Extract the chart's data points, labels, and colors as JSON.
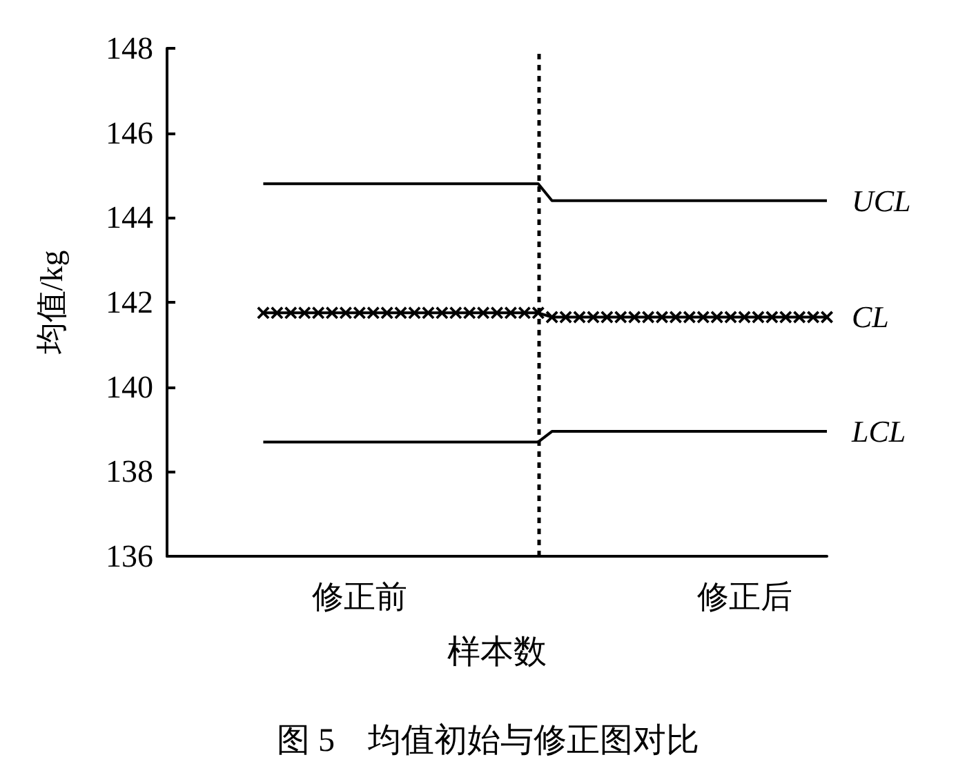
{
  "chart_data": {
    "type": "line",
    "title": "图 5　均值初始与修正图对比",
    "xlabel": "样本数",
    "ylabel": "均值/kg",
    "categories": [
      null,
      null,
      null,
      null,
      null,
      null,
      null,
      null,
      null,
      null,
      null,
      null,
      null,
      null,
      "修正前",
      null,
      null,
      null,
      null,
      null,
      null,
      null,
      null,
      null,
      null,
      null,
      null,
      null,
      null,
      null,
      null,
      null,
      null,
      null,
      null,
      null,
      null,
      null,
      null,
      null,
      null,
      null,
      "修正后",
      null,
      null,
      null,
      null,
      null,
      null
    ],
    "ylim": [
      136,
      148
    ],
    "yticks": [
      136,
      138,
      140,
      142,
      144,
      146,
      148
    ],
    "series": [
      {
        "name": "UCL",
        "color": "#000000",
        "marker": "none",
        "values": [
          null,
          null,
          null,
          null,
          null,
          null,
          null,
          144.8,
          null,
          null,
          null,
          null,
          null,
          null,
          null,
          null,
          null,
          null,
          null,
          null,
          null,
          null,
          null,
          null,
          null,
          null,
          null,
          144.8,
          144.4,
          null,
          null,
          null,
          null,
          null,
          null,
          null,
          null,
          null,
          null,
          null,
          null,
          null,
          null,
          null,
          null,
          null,
          null,
          null,
          144.4
        ]
      },
      {
        "name": "CL",
        "color": "#000000",
        "marker": "cross",
        "values": [
          null,
          null,
          null,
          null,
          null,
          null,
          null,
          141.75,
          141.75,
          141.75,
          141.75,
          141.75,
          141.75,
          141.75,
          141.75,
          141.75,
          141.75,
          141.75,
          141.75,
          141.75,
          141.75,
          141.75,
          141.75,
          141.75,
          141.75,
          141.75,
          141.75,
          141.75,
          141.65,
          141.65,
          141.65,
          141.65,
          141.65,
          141.65,
          141.65,
          141.65,
          141.65,
          141.65,
          141.65,
          141.65,
          141.65,
          141.65,
          141.65,
          141.65,
          141.65,
          141.65,
          141.65,
          141.65,
          141.65
        ]
      },
      {
        "name": "LCL",
        "color": "#000000",
        "marker": "none",
        "values": [
          null,
          null,
          null,
          null,
          null,
          null,
          null,
          138.7,
          null,
          null,
          null,
          null,
          null,
          null,
          null,
          null,
          null,
          null,
          null,
          null,
          null,
          null,
          null,
          null,
          null,
          null,
          null,
          138.7,
          138.95,
          null,
          null,
          null,
          null,
          null,
          null,
          null,
          null,
          null,
          null,
          null,
          null,
          null,
          null,
          null,
          null,
          null,
          null,
          null,
          138.95
        ]
      }
    ],
    "grid": false,
    "legend": false
  }
}
